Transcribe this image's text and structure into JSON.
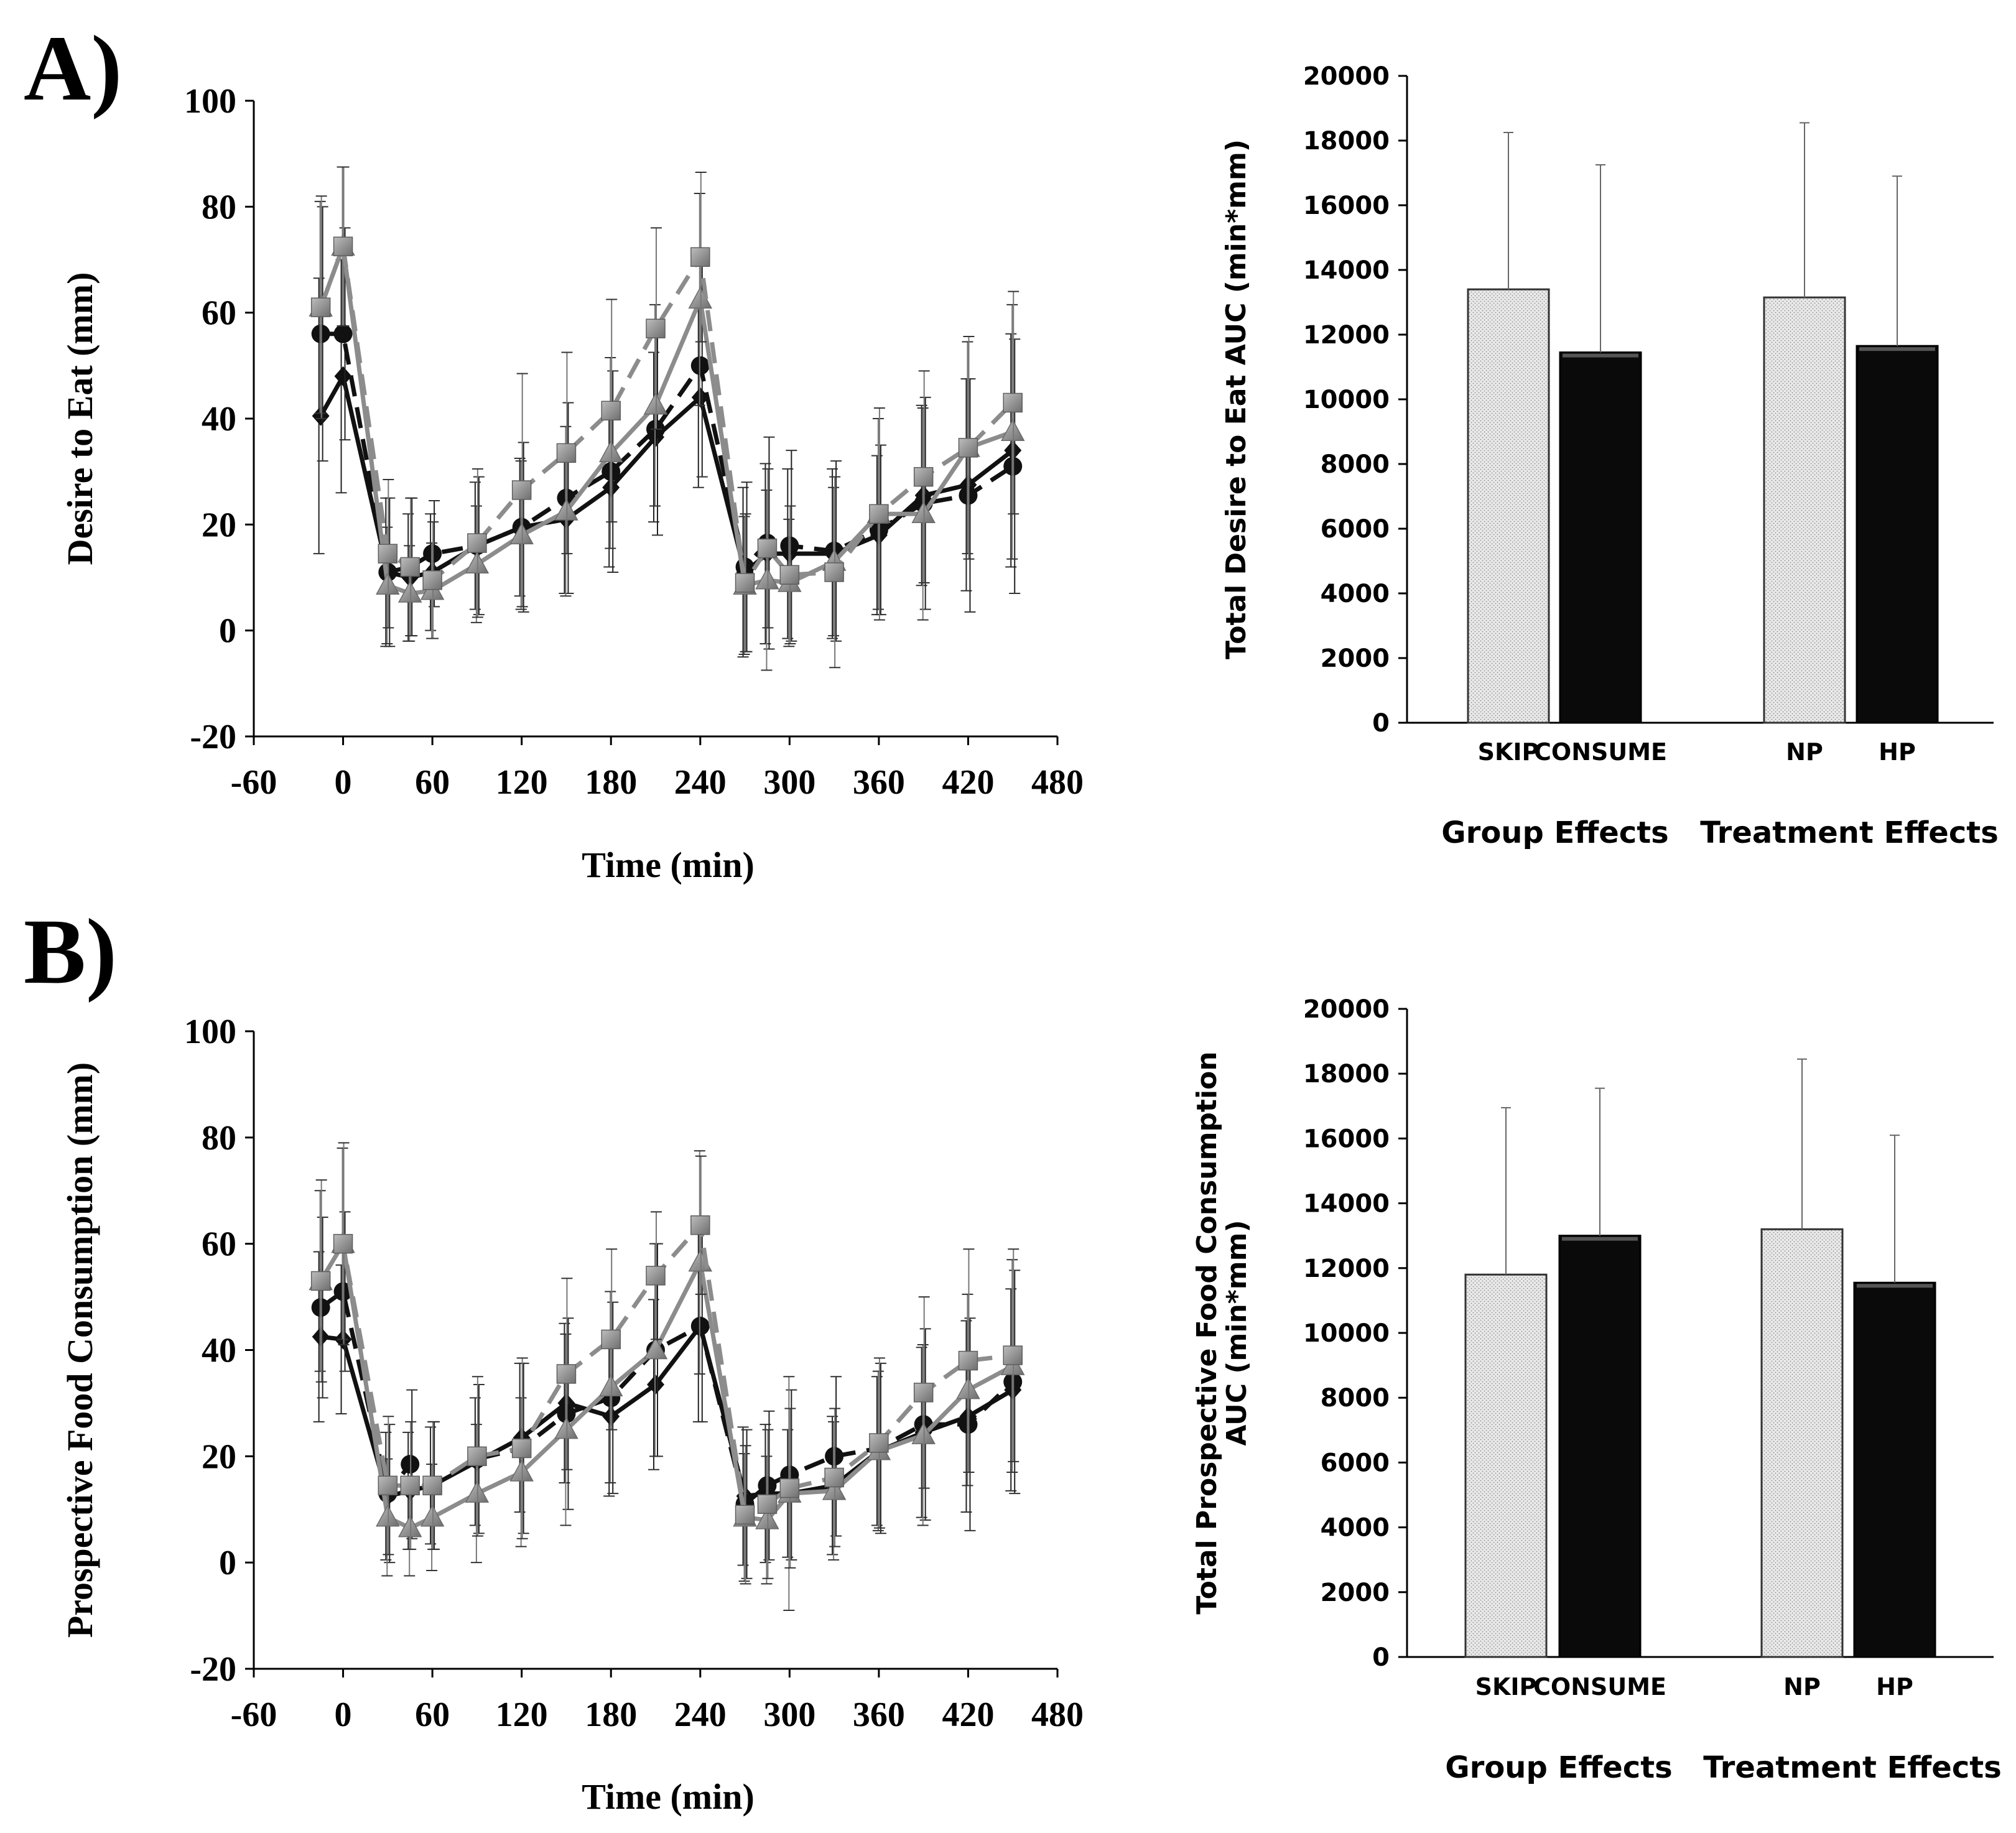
{
  "panels": [
    {
      "label": "A)"
    },
    {
      "label": "B)"
    }
  ],
  "colors": {
    "axis": "#000000",
    "black_series": "#111111",
    "gray_series": "#8c8c8c",
    "skip_bar_fill": "#e6e6e6",
    "consume_bar_fill": "#0a0a0a"
  },
  "chart_data": [
    {
      "type": "line",
      "panel": "A)",
      "title": "",
      "xlabel": "Time (min)",
      "ylabel": "Desire to Eat (mm)",
      "xlim": [
        -60,
        480
      ],
      "ylim": [
        -20,
        100
      ],
      "xticks": [
        "-60",
        "0",
        "60",
        "120",
        "180",
        "240",
        "300",
        "360",
        "420",
        "480"
      ],
      "yticks": [
        "-20",
        "0",
        "20",
        "40",
        "60",
        "80",
        "100"
      ],
      "x": [
        -15,
        0,
        30,
        45,
        60,
        90,
        120,
        150,
        180,
        210,
        240,
        270,
        285,
        300,
        330,
        360,
        390,
        420,
        450
      ],
      "series": [
        {
          "name": "black-diamond-solid",
          "marker": "diamond",
          "color": "#111111",
          "dash": "solid",
          "values": [
            40.5,
            48,
            11,
            10,
            11,
            16,
            19.5,
            21,
            27,
            36.5,
            44,
            11,
            14.5,
            14.5,
            14.5,
            18,
            25.5,
            27.5,
            34
          ],
          "errors": [
            26,
            22,
            14,
            12,
            11,
            12,
            13,
            14,
            15,
            16,
            17,
            16,
            17,
            16,
            16,
            15,
            17,
            20,
            22
          ]
        },
        {
          "name": "black-circle-dashed",
          "marker": "circle",
          "color": "#111111",
          "dash": "dashed",
          "values": [
            56,
            56,
            11,
            12,
            14.5,
            16,
            19.5,
            25,
            30,
            38,
            50,
            12,
            16.5,
            16,
            15,
            19,
            24,
            25.5,
            31
          ],
          "errors": [
            24,
            20,
            14,
            13,
            10,
            13,
            16,
            18,
            19,
            20,
            21,
            16,
            20,
            18,
            17,
            16,
            20,
            22,
            24
          ]
        },
        {
          "name": "gray-triangle-solid",
          "marker": "triangle",
          "color": "#8c8c8c",
          "dash": "solid",
          "values": [
            61,
            72.5,
            8.5,
            7,
            7.5,
            12.5,
            18,
            22.5,
            33.5,
            42.5,
            62.5,
            8.5,
            9.5,
            9,
            13,
            22,
            22,
            34.5,
            37.5
          ],
          "errors": [
            20,
            15,
            11,
            9,
            9,
            11,
            14,
            16,
            18,
            19,
            20,
            13,
            17,
            12,
            14,
            18,
            20,
            20,
            24
          ]
        },
        {
          "name": "gray-square-dashed",
          "marker": "square",
          "color": "#8c8c8c",
          "dash": "dashed",
          "values": [
            61,
            72.5,
            14.5,
            12,
            9.5,
            16.5,
            26.5,
            33.5,
            41.5,
            57,
            70.5,
            9,
            15.5,
            10.5,
            11,
            22,
            29,
            34.5,
            43
          ],
          "errors": [
            21,
            15,
            14,
            13,
            11,
            14,
            22,
            19,
            21,
            19,
            16,
            13,
            15,
            13,
            18,
            20,
            20,
            21,
            21
          ]
        }
      ]
    },
    {
      "type": "bar",
      "panel": "A)",
      "title": "",
      "xlabel": "",
      "ylabel": "Total Desire to Eat AUC (min*mm)",
      "ylim": [
        0,
        20000
      ],
      "yticks": [
        "0",
        "2000",
        "4000",
        "6000",
        "8000",
        "10000",
        "12000",
        "14000",
        "16000",
        "18000",
        "20000"
      ],
      "categories": [
        "SKIP",
        "CONSUME",
        "NP",
        "HP"
      ],
      "values": [
        13400,
        11450,
        13150,
        11650
      ],
      "errors": [
        4850,
        5800,
        5400,
        5250
      ],
      "group_labels": [
        "Group Effects",
        "Treatment Effects"
      ]
    },
    {
      "type": "line",
      "panel": "B)",
      "title": "",
      "xlabel": "Time (min)",
      "ylabel": "Prospective Food Consumption (mm)",
      "xlim": [
        -60,
        480
      ],
      "ylim": [
        -20,
        100
      ],
      "xticks": [
        "-60",
        "0",
        "60",
        "120",
        "180",
        "240",
        "300",
        "360",
        "420",
        "480"
      ],
      "yticks": [
        "-20",
        "0",
        "20",
        "40",
        "60",
        "80",
        "100"
      ],
      "x": [
        -15,
        0,
        30,
        45,
        60,
        90,
        120,
        150,
        180,
        210,
        240,
        270,
        285,
        300,
        330,
        360,
        390,
        420,
        450
      ],
      "series": [
        {
          "name": "black-diamond-solid",
          "marker": "diamond",
          "color": "#111111",
          "dash": "solid",
          "values": [
            42.5,
            42,
            12.5,
            13.5,
            14.5,
            19,
            23.5,
            30,
            27.5,
            33.5,
            44.5,
            12.5,
            13,
            13,
            14.5,
            21,
            24.5,
            27.5,
            32.5
          ],
          "errors": [
            16,
            14,
            12,
            11,
            11,
            12,
            14,
            15,
            15,
            16,
            18,
            13,
            13,
            12,
            13,
            14,
            16,
            18,
            19
          ]
        },
        {
          "name": "black-circle-dashed",
          "marker": "circle",
          "color": "#111111",
          "dash": "dashed",
          "values": [
            48,
            51,
            13,
            18.5,
            14.5,
            19.5,
            21.5,
            28,
            31,
            40,
            44.5,
            11,
            14.5,
            16.5,
            20,
            21.5,
            26,
            26,
            34
          ],
          "errors": [
            17,
            15,
            13,
            14,
            12,
            14,
            16,
            18,
            18,
            20,
            18,
            14,
            14,
            16,
            15,
            16,
            18,
            20,
            21
          ]
        },
        {
          "name": "gray-triangle-solid",
          "marker": "triangle",
          "color": "#8c8c8c",
          "dash": "solid",
          "values": [
            53,
            60,
            8.5,
            6.5,
            8.5,
            13,
            17,
            25,
            33,
            40,
            56.5,
            8.5,
            8,
            13,
            13.5,
            21,
            24,
            32.5,
            37
          ],
          "errors": [
            17,
            18,
            11,
            9,
            10,
            13,
            14,
            18,
            18,
            20,
            21,
            12,
            12,
            22,
            13,
            15,
            17,
            18,
            20
          ]
        },
        {
          "name": "gray-square-dashed",
          "marker": "square",
          "color": "#8c8c8c",
          "dash": "dashed",
          "values": [
            53,
            60,
            14.5,
            14.5,
            14.5,
            20,
            21.5,
            35.5,
            42,
            54,
            63.5,
            9,
            11,
            14,
            16,
            22.5,
            32,
            38,
            39
          ],
          "errors": [
            19,
            19,
            13,
            12,
            12,
            15,
            17,
            18,
            17,
            12,
            13,
            13,
            14,
            15,
            13,
            16,
            18,
            21,
            20
          ]
        }
      ]
    },
    {
      "type": "bar",
      "panel": "B)",
      "title": "",
      "xlabel": "",
      "ylabel": "Total Prospective Food Consumption AUC (min*mm)",
      "ylabel_lines": [
        "Total Prospective Food Consumption",
        "AUC (min*mm)"
      ],
      "ylim": [
        0,
        20000
      ],
      "yticks": [
        "0",
        "2000",
        "4000",
        "6000",
        "8000",
        "10000",
        "12000",
        "14000",
        "16000",
        "18000",
        "20000"
      ],
      "categories": [
        "SKIP",
        "CONSUME",
        "NP",
        "HP"
      ],
      "values": [
        11800,
        13000,
        13200,
        11550
      ],
      "errors": [
        5150,
        4550,
        5250,
        4550
      ],
      "group_labels": [
        "Group Effects",
        "Treatment Effects"
      ]
    }
  ]
}
